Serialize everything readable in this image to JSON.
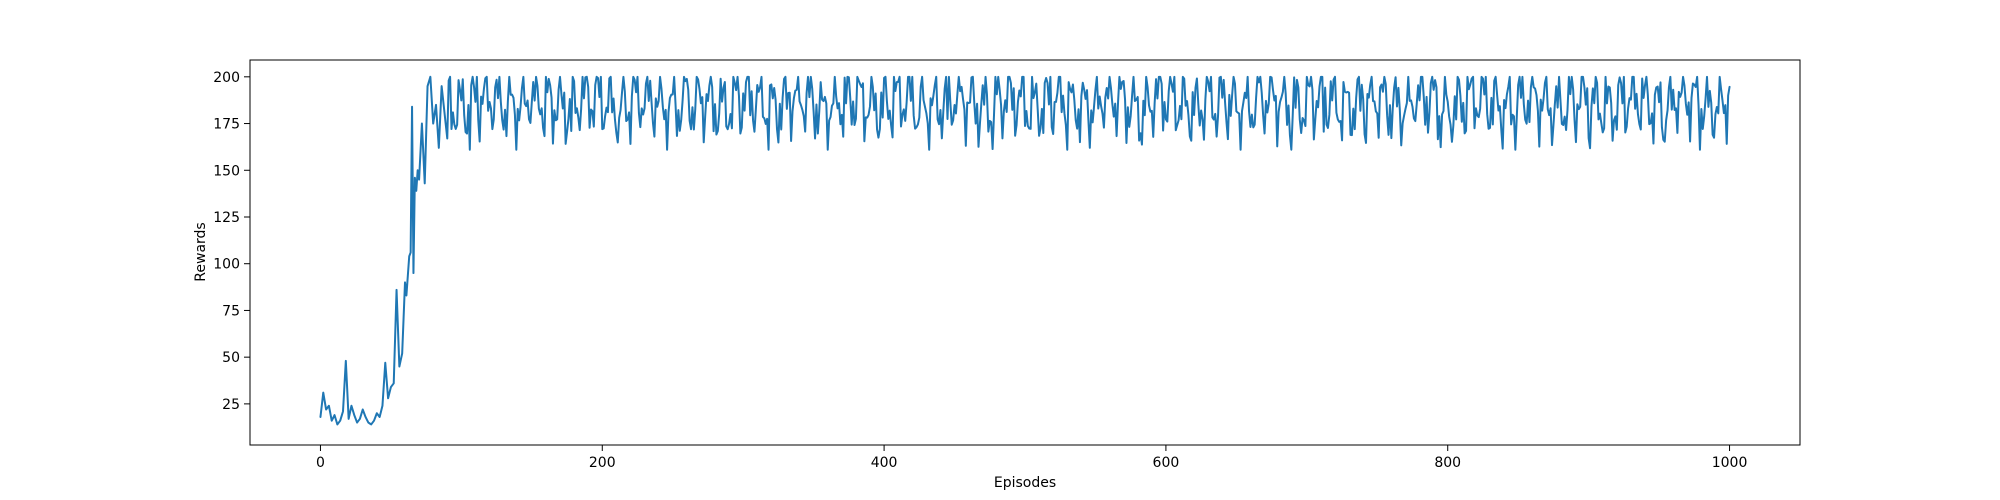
{
  "chart_data": {
    "type": "line",
    "title": "",
    "xlabel": "Episodes",
    "ylabel": "Rewards",
    "xlim": [
      -50,
      1050
    ],
    "ylim": [
      3,
      209
    ],
    "xticks": [
      0,
      200,
      400,
      600,
      800,
      1000
    ],
    "yticks": [
      25,
      50,
      75,
      100,
      125,
      150,
      175,
      200
    ],
    "grid": false,
    "line_color": "#1f77b4",
    "series": [
      {
        "keypoints": [
          [
            0,
            18
          ],
          [
            2,
            31
          ],
          [
            4,
            22
          ],
          [
            6,
            24
          ],
          [
            8,
            16
          ],
          [
            10,
            19
          ],
          [
            12,
            14
          ],
          [
            14,
            16
          ],
          [
            16,
            21
          ],
          [
            18,
            48
          ],
          [
            20,
            17
          ],
          [
            22,
            24
          ],
          [
            24,
            19
          ],
          [
            26,
            15
          ],
          [
            28,
            17
          ],
          [
            30,
            22
          ],
          [
            32,
            18
          ],
          [
            34,
            15
          ],
          [
            36,
            14
          ],
          [
            38,
            16
          ],
          [
            40,
            20
          ],
          [
            42,
            18
          ],
          [
            44,
            24
          ],
          [
            46,
            47
          ],
          [
            48,
            28
          ],
          [
            50,
            34
          ],
          [
            52,
            36
          ],
          [
            54,
            86
          ],
          [
            56,
            45
          ],
          [
            58,
            52
          ],
          [
            60,
            90
          ],
          [
            61,
            83
          ],
          [
            63,
            104
          ],
          [
            64,
            106
          ],
          [
            65,
            184
          ],
          [
            66,
            95
          ],
          [
            67,
            146
          ],
          [
            68,
            139
          ],
          [
            69,
            150
          ],
          [
            70,
            145
          ],
          [
            72,
            175
          ],
          [
            74,
            143
          ],
          [
            76,
            195
          ],
          [
            78,
            200
          ],
          [
            80,
            175
          ],
          [
            82,
            185
          ],
          [
            84,
            162
          ],
          [
            86,
            195
          ],
          [
            88,
            181
          ],
          [
            90,
            167
          ]
        ],
        "plateau": {
          "x_start": 91,
          "x_end": 1000,
          "min": 161,
          "max": 200,
          "center": 186
        }
      }
    ]
  }
}
